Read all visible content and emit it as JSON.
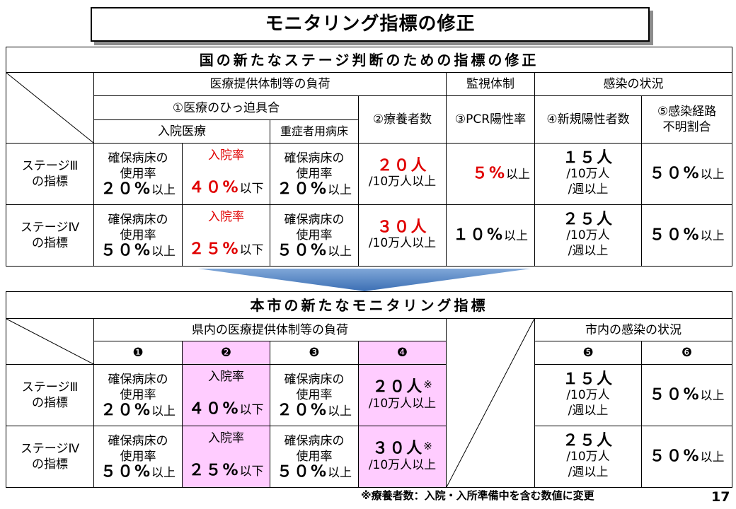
{
  "slide_title": "モニタリング指標の修正",
  "page_number": "17",
  "footnote": "※療養者数：入院・入所準備中を含む数値に変更",
  "national": {
    "header": "国の新たなステージ判断のための指標の修正",
    "group_medical": "医療提供体制等の負荷",
    "group_monitor": "監視体制",
    "group_infection": "感染の状況",
    "sub_pressure": "①医療のひっ迫具合",
    "col_inpatient": "入院医療",
    "col_severe": "重症者用病床",
    "col_recuperating": "②療養者数",
    "col_pcr": "③PCR陽性率",
    "col_new_cases": "④新規陽性者数",
    "col_unknown_route_1": "⑤感染経路",
    "col_unknown_route_2": "不明割合",
    "rows": [
      {
        "stage_1": "ステージⅢ",
        "stage_2": "の指標",
        "beds_label_1": "確保病床の",
        "beds_label_2": "使用率",
        "beds_value": "２０%",
        "beds_suffix": "以上",
        "hosp_label": "入院率",
        "hosp_value": "４０%",
        "hosp_suffix": "以下",
        "severe_label_1": "確保病床の",
        "severe_label_2": "使用率",
        "severe_value": "２０%",
        "severe_suffix": "以上",
        "recup_value": "２０人",
        "recup_suffix": "/10万人以上",
        "pcr_value": "５%",
        "pcr_suffix": "以上",
        "new_value": "１５人",
        "new_unit_1": "/10万人",
        "new_unit_2": "/週以上",
        "route_value": "５０%",
        "route_suffix": "以上"
      },
      {
        "stage_1": "ステージⅣ",
        "stage_2": "の指標",
        "beds_label_1": "確保病床の",
        "beds_label_2": "使用率",
        "beds_value": "５０%",
        "beds_suffix": "以上",
        "hosp_label": "入院率",
        "hosp_value": "２５%",
        "hosp_suffix": "以下",
        "severe_label_1": "確保病床の",
        "severe_label_2": "使用率",
        "severe_value": "５０%",
        "severe_suffix": "以上",
        "recup_value": "３０人",
        "recup_suffix": "/10万人以上",
        "pcr_value": "１０%",
        "pcr_suffix": "以上",
        "new_value": "２５人",
        "new_unit_1": "/10万人",
        "new_unit_2": "/週以上",
        "route_value": "５０%",
        "route_suffix": "以上"
      }
    ]
  },
  "city": {
    "header": "本市の新たなモニタリング指標",
    "group_medical": "県内の医療提供体制等の負荷",
    "group_infection": "市内の感染の状況",
    "num_1": "❶",
    "num_2": "❷",
    "num_3": "❸",
    "num_4": "❹",
    "num_5": "❺",
    "num_6": "❻",
    "note_mark": "※",
    "rows": [
      {
        "stage_1": "ステージⅢ",
        "stage_2": "の指標",
        "beds_label_1": "確保病床の",
        "beds_label_2": "使用率",
        "beds_value": "２０%",
        "beds_suffix": "以上",
        "hosp_label": "入院率",
        "hosp_value": "４０%",
        "hosp_suffix": "以下",
        "severe_label_1": "確保病床の",
        "severe_label_2": "使用率",
        "severe_value": "２０%",
        "severe_suffix": "以上",
        "recup_value": "２０人",
        "recup_suffix": "/10万人以上",
        "new_value": "１５人",
        "new_unit_1": "/10万人",
        "new_unit_2": "/週以上",
        "route_value": "５０%",
        "route_suffix": "以上"
      },
      {
        "stage_1": "ステージⅣ",
        "stage_2": "の指標",
        "beds_label_1": "確保病床の",
        "beds_label_2": "使用率",
        "beds_value": "５０%",
        "beds_suffix": "以上",
        "hosp_label": "入院率",
        "hosp_value": "２５%",
        "hosp_suffix": "以下",
        "severe_label_1": "確保病床の",
        "severe_label_2": "使用率",
        "severe_value": "５０%",
        "severe_suffix": "以上",
        "recup_value": "３０人",
        "recup_suffix": "/10万人以上",
        "new_value": "２５人",
        "new_unit_1": "/10万人",
        "new_unit_2": "/週以上",
        "route_value": "５０%",
        "route_suffix": "以上"
      }
    ]
  },
  "colors": {
    "red": "#e00000",
    "pink": "#ffccff",
    "arrow_top": "#7fa7d8",
    "arrow_bottom": "#3c6fb4"
  }
}
